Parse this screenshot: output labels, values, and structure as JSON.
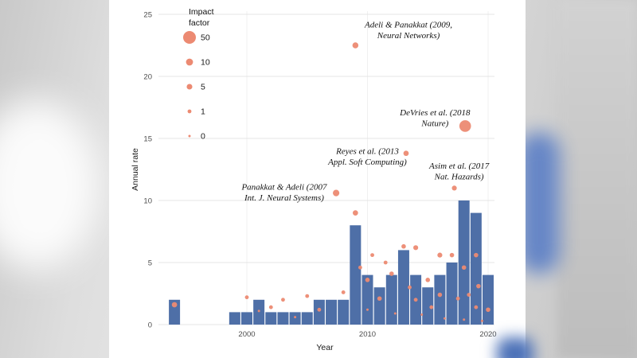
{
  "chart_data": {
    "type": "bar+scatter",
    "xlabel": "Year",
    "ylabel": "Annual rate",
    "x_ticks": [
      2000,
      2010,
      2020
    ],
    "y_ticks": [
      0,
      5,
      10,
      15,
      20,
      25
    ],
    "xlim": [
      1993,
      2021
    ],
    "ylim": [
      0,
      25
    ],
    "grid": "on",
    "bar_color": "#4e6fa7",
    "dot_color": "#ec8a72",
    "bars": {
      "years": [
        1994,
        1999,
        2000,
        2001,
        2002,
        2003,
        2004,
        2005,
        2006,
        2007,
        2008,
        2009,
        2010,
        2011,
        2012,
        2013,
        2014,
        2015,
        2016,
        2017,
        2018,
        2019,
        2020
      ],
      "values": [
        2,
        1,
        1,
        2,
        1,
        1,
        1,
        1,
        2,
        2,
        2,
        8,
        4,
        3,
        4,
        6,
        4,
        3,
        4,
        5,
        10,
        9,
        4
      ]
    },
    "scatter": [
      {
        "year": 1994,
        "value": 1.6,
        "impact": 4
      },
      {
        "year": 2000,
        "value": 2.2,
        "impact": 1
      },
      {
        "year": 2001,
        "value": 1.1,
        "impact": 0
      },
      {
        "year": 2002,
        "value": 1.4,
        "impact": 1
      },
      {
        "year": 2003,
        "value": 2.0,
        "impact": 1
      },
      {
        "year": 2004,
        "value": 0.6,
        "impact": 0
      },
      {
        "year": 2005,
        "value": 2.3,
        "impact": 1
      },
      {
        "year": 2006,
        "value": 1.2,
        "impact": 1
      },
      {
        "year": 2007.4,
        "value": 10.6,
        "impact": 8
      },
      {
        "year": 2008,
        "value": 2.6,
        "impact": 1
      },
      {
        "year": 2009,
        "value": 22.5,
        "impact": 6
      },
      {
        "year": 2009,
        "value": 9.0,
        "impact": 4
      },
      {
        "year": 2009.4,
        "value": 4.6,
        "impact": 1
      },
      {
        "year": 2010,
        "value": 3.6,
        "impact": 2
      },
      {
        "year": 2010.4,
        "value": 5.6,
        "impact": 1
      },
      {
        "year": 2010,
        "value": 1.2,
        "impact": 0
      },
      {
        "year": 2011,
        "value": 2.1,
        "impact": 2
      },
      {
        "year": 2011.5,
        "value": 5.0,
        "impact": 1
      },
      {
        "year": 2012,
        "value": 4.1,
        "impact": 2
      },
      {
        "year": 2012.3,
        "value": 0.9,
        "impact": 0
      },
      {
        "year": 2013.2,
        "value": 13.8,
        "impact": 4
      },
      {
        "year": 2013,
        "value": 6.3,
        "impact": 2
      },
      {
        "year": 2013.5,
        "value": 3.0,
        "impact": 1
      },
      {
        "year": 2014,
        "value": 6.2,
        "impact": 3
      },
      {
        "year": 2014,
        "value": 2.0,
        "impact": 1
      },
      {
        "year": 2014.5,
        "value": 0.8,
        "impact": 0
      },
      {
        "year": 2015,
        "value": 3.6,
        "impact": 2
      },
      {
        "year": 2015.3,
        "value": 1.4,
        "impact": 1
      },
      {
        "year": 2016,
        "value": 5.6,
        "impact": 3
      },
      {
        "year": 2016,
        "value": 2.4,
        "impact": 2
      },
      {
        "year": 2016.4,
        "value": 0.5,
        "impact": 0
      },
      {
        "year": 2017.2,
        "value": 11.0,
        "impact": 3
      },
      {
        "year": 2017,
        "value": 5.6,
        "impact": 2
      },
      {
        "year": 2017.5,
        "value": 2.1,
        "impact": 1
      },
      {
        "year": 2018.1,
        "value": 16.0,
        "impact": 40
      },
      {
        "year": 2018,
        "value": 4.6,
        "impact": 2
      },
      {
        "year": 2018.4,
        "value": 2.4,
        "impact": 1
      },
      {
        "year": 2018,
        "value": 0.4,
        "impact": 0
      },
      {
        "year": 2019,
        "value": 5.6,
        "impact": 2
      },
      {
        "year": 2019.2,
        "value": 3.1,
        "impact": 2
      },
      {
        "year": 2019,
        "value": 1.4,
        "impact": 1
      },
      {
        "year": 2019.5,
        "value": 0.3,
        "impact": 0
      },
      {
        "year": 2020,
        "value": 1.2,
        "impact": 2
      }
    ],
    "legend": {
      "title": "Impact factor",
      "entries": [
        {
          "label": "50",
          "impact": 50
        },
        {
          "label": "10",
          "impact": 10
        },
        {
          "label": "5",
          "impact": 5
        },
        {
          "label": "1",
          "impact": 1
        },
        {
          "label": "0",
          "impact": 0
        }
      ]
    },
    "annotations": [
      {
        "lines": [
          "Adeli & Panakkat (2009,",
          "Neural Networks)"
        ],
        "year": 2013.4,
        "value": 23.95
      },
      {
        "lines": [
          "DeVries et al. (2018",
          "Nature)"
        ],
        "year": 2015.6,
        "value": 16.85
      },
      {
        "lines": [
          "Reyes et al. (2013",
          "Appl. Soft Computing)"
        ],
        "year": 2010.0,
        "value": 13.75
      },
      {
        "lines": [
          "Asim et al. (2017",
          "Nat. Hazards)"
        ],
        "year": 2017.6,
        "value": 12.55
      },
      {
        "lines": [
          "Panakkat & Adeli (2007",
          "Int. J. Neural Systems)"
        ],
        "year": 2003.1,
        "value": 10.85
      }
    ]
  }
}
